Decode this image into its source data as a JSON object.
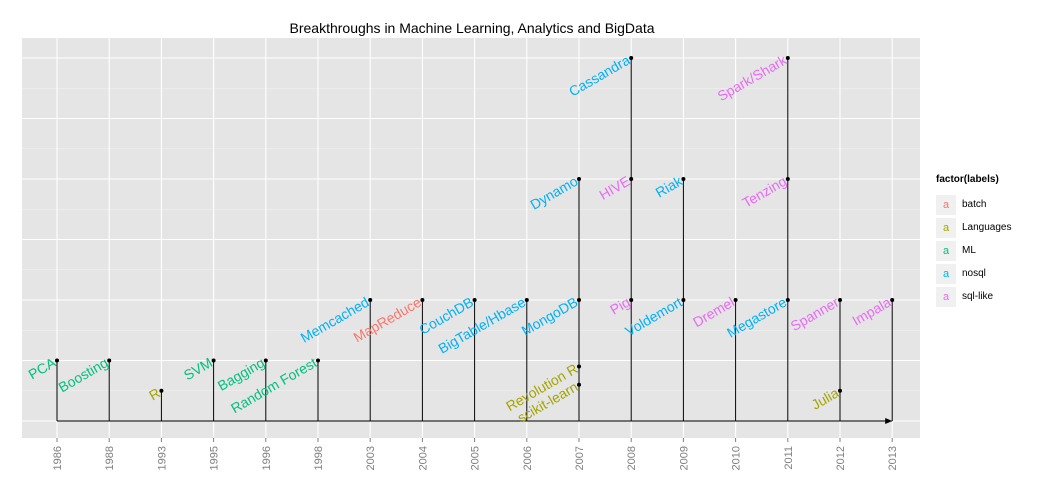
{
  "chart_data": {
    "type": "timeline",
    "title": "Breakthroughs in Machine Learning, Analytics and BigData",
    "categories": [
      "1986",
      "1988",
      "1993",
      "1995",
      "1996",
      "1998",
      "2003",
      "2004",
      "2005",
      "2006",
      "2007",
      "2008",
      "2009",
      "2010",
      "2011",
      "2012",
      "2013"
    ],
    "legend": {
      "title": "factor(labels)",
      "placement": "right",
      "entries": [
        {
          "name": "batch",
          "color": "#F8766D"
        },
        {
          "name": "Languages",
          "color": "#A3A500"
        },
        {
          "name": "ML",
          "color": "#00BF7D"
        },
        {
          "name": "nosql",
          "color": "#00B0F6"
        },
        {
          "name": "sql-like",
          "color": "#E76BF3"
        }
      ]
    },
    "events": [
      {
        "label": "PCA",
        "year": "1986",
        "group": "ML",
        "level": 2
      },
      {
        "label": "Boosting",
        "year": "1988",
        "group": "ML",
        "level": 2
      },
      {
        "label": "R",
        "year": "1993",
        "group": "Languages",
        "level": 1
      },
      {
        "label": "SVM",
        "year": "1995",
        "group": "ML",
        "level": 2
      },
      {
        "label": "Bagging",
        "year": "1996",
        "group": "ML",
        "level": 2
      },
      {
        "label": "Random Forest",
        "year": "1998",
        "group": "ML",
        "level": 2
      },
      {
        "label": "Memcached",
        "year": "2003",
        "group": "nosql",
        "level": 4
      },
      {
        "label": "MapReduce",
        "year": "2004",
        "group": "batch",
        "level": 4
      },
      {
        "label": "CouchDB",
        "year": "2005",
        "group": "nosql",
        "level": 4
      },
      {
        "label": "BigTable/Hbase",
        "year": "2006",
        "group": "nosql",
        "level": 4
      },
      {
        "label": "MongoDB",
        "year": "2007",
        "group": "nosql",
        "level": 4
      },
      {
        "label": "Dynamo",
        "year": "2007",
        "group": "nosql",
        "level": 8
      },
      {
        "label": "Revolution R",
        "year": "2007",
        "group": "Languages",
        "level": 1.8
      },
      {
        "label": "scikit-learn",
        "year": "2007",
        "group": "Languages",
        "level": 1.2
      },
      {
        "label": "Pig",
        "year": "2008",
        "group": "sql-like",
        "level": 4
      },
      {
        "label": "HIVE",
        "year": "2008",
        "group": "sql-like",
        "level": 8
      },
      {
        "label": "Cassandra",
        "year": "2008",
        "group": "nosql",
        "level": 12
      },
      {
        "label": "Voldemort",
        "year": "2009",
        "group": "nosql",
        "level": 4
      },
      {
        "label": "Riak",
        "year": "2009",
        "group": "nosql",
        "level": 8
      },
      {
        "label": "Dremel",
        "year": "2010",
        "group": "sql-like",
        "level": 4
      },
      {
        "label": "Megastore",
        "year": "2011",
        "group": "nosql",
        "level": 4
      },
      {
        "label": "Tenzing",
        "year": "2011",
        "group": "sql-like",
        "level": 8
      },
      {
        "label": "Spark/Shark",
        "year": "2011",
        "group": "sql-like",
        "level": 12
      },
      {
        "label": "Spanner",
        "year": "2012",
        "group": "sql-like",
        "level": 4
      },
      {
        "label": "Julia",
        "year": "2012",
        "group": "Languages",
        "level": 1
      },
      {
        "label": "Impala",
        "year": "2013",
        "group": "sql-like",
        "level": 4
      }
    ],
    "grid": true
  }
}
